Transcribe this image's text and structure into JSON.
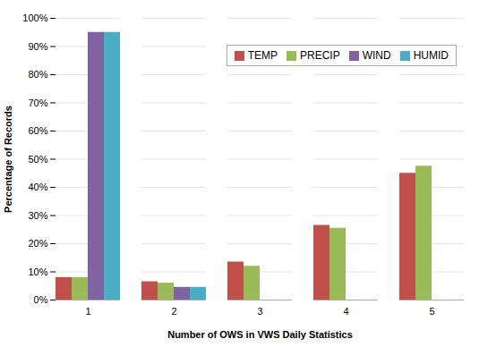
{
  "chart_data": {
    "type": "bar",
    "xlabel": "Number of OWS in VWS Daily Statistics",
    "ylabel": "Percentage of Records",
    "categories": [
      1,
      2,
      3,
      4,
      5
    ],
    "series": [
      {
        "name": "TEMP",
        "color": "#C0504D",
        "values": [
          8,
          6.5,
          13.5,
          26.5,
          45
        ]
      },
      {
        "name": "PRECIP",
        "color": "#9BBB59",
        "values": [
          8,
          6,
          12,
          25.5,
          47.5
        ]
      },
      {
        "name": "WIND",
        "color": "#8064A2",
        "values": [
          95,
          4.5,
          0,
          0,
          0
        ]
      },
      {
        "name": "HUMID",
        "color": "#4BACC6",
        "values": [
          95,
          4.5,
          0,
          0,
          0
        ]
      }
    ],
    "ylim": [
      0,
      100
    ],
    "yticks": [
      {
        "value": 0,
        "label": "0%"
      },
      {
        "value": 10,
        "label": "10%"
      },
      {
        "value": 20,
        "label": "20%"
      },
      {
        "value": 30,
        "label": "30%"
      },
      {
        "value": 40,
        "label": "40%"
      },
      {
        "value": 50,
        "label": "50%"
      },
      {
        "value": 60,
        "label": "60%"
      },
      {
        "value": 70,
        "label": "70%"
      },
      {
        "value": 80,
        "label": "80%"
      },
      {
        "value": 90,
        "label": "90%"
      },
      {
        "value": 100,
        "label": "100%"
      }
    ],
    "grid": true,
    "legend": "upper right"
  }
}
